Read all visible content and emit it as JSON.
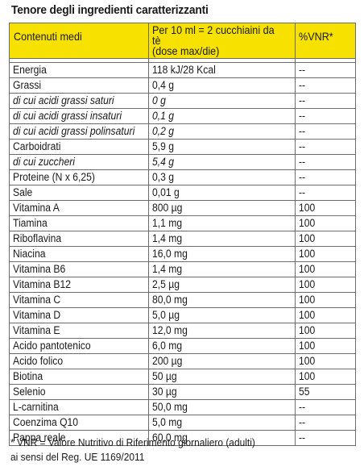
{
  "title": "Tenore degli ingredienti caratterizzanti",
  "table": {
    "headers": {
      "col1": "Contenuti medi",
      "col2_line1": "Per 10 ml = 2 cucchiaini da tè",
      "col2_line2": "(dose max/die)",
      "col3": "%VNR*"
    },
    "rows": [
      {
        "name": "Energia",
        "amount": "118 kJ/28 Kcal",
        "vnr": "--",
        "italic": false
      },
      {
        "name": "Grassi",
        "amount": "0,4 g",
        "vnr": "--",
        "italic": false
      },
      {
        "name": "di cui acidi grassi saturi",
        "amount": "0 g",
        "vnr": "--",
        "italic": true
      },
      {
        "name": "di cui acidi grassi insaturi",
        "amount": "0,1 g",
        "vnr": "--",
        "italic": true
      },
      {
        "name": "di cui acidi grassi polinsaturi",
        "amount": "0,2 g",
        "vnr": "--",
        "italic": true
      },
      {
        "name": "Carboidrati",
        "amount": "5,9 g",
        "vnr": "--",
        "italic": false
      },
      {
        "name": "di cui zuccheri",
        "amount": "5,4 g",
        "vnr": "--",
        "italic": true
      },
      {
        "name": "Proteine (N x 6,25)",
        "amount": "0,3 g",
        "vnr": "--",
        "italic": false
      },
      {
        "name": "Sale",
        "amount": "0,01 g",
        "vnr": "--",
        "italic": false
      },
      {
        "name": "Vitamina A",
        "amount": "800 µg",
        "vnr": "100",
        "italic": false
      },
      {
        "name": "Tiamina",
        "amount": "1,1 mg",
        "vnr": "100",
        "italic": false
      },
      {
        "name": "Riboflavina",
        "amount": "1,4 mg",
        "vnr": "100",
        "italic": false
      },
      {
        "name": "Niacina",
        "amount": "16,0 mg",
        "vnr": "100",
        "italic": false
      },
      {
        "name": "Vitamina B6",
        "amount": "1,4 mg",
        "vnr": "100",
        "italic": false
      },
      {
        "name": "Vitamina B12",
        "amount": "2,5 µg",
        "vnr": "100",
        "italic": false
      },
      {
        "name": "Vitamina C",
        "amount": "80,0 mg",
        "vnr": "100",
        "italic": false
      },
      {
        "name": "Vitamina D",
        "amount": "5,0 µg",
        "vnr": "100",
        "italic": false
      },
      {
        "name": "Vitamina E",
        "amount": "12,0 mg",
        "vnr": "100",
        "italic": false
      },
      {
        "name": "Acido pantotenico",
        "amount": "6,0 mg",
        "vnr": "100",
        "italic": false
      },
      {
        "name": "Acido folico",
        "amount": "200 µg",
        "vnr": "100",
        "italic": false
      },
      {
        "name": "Biotina",
        "amount": "50 µg",
        "vnr": "100",
        "italic": false
      },
      {
        "name": "Selenio",
        "amount": "30 µg",
        "vnr": "55",
        "italic": false
      },
      {
        "name": "L-carnitina",
        "amount": "50,0 mg",
        "vnr": "--",
        "italic": false
      },
      {
        "name": "Coenzima Q10",
        "amount": "5,0 mg",
        "vnr": "--",
        "italic": false
      },
      {
        "name": "Pappa reale",
        "amount": "60,0 mg",
        "vnr": "--",
        "italic": false
      }
    ]
  },
  "footnote": {
    "line1": "* VNR = Valore Nutritivo di Riferimento giornaliero (adulti)",
    "line2": "ai sensi del Reg. UE 1169/2011"
  },
  "colors": {
    "header_bg": "#f6e100",
    "border": "#6b6b6b",
    "text": "#1a1a1a"
  }
}
